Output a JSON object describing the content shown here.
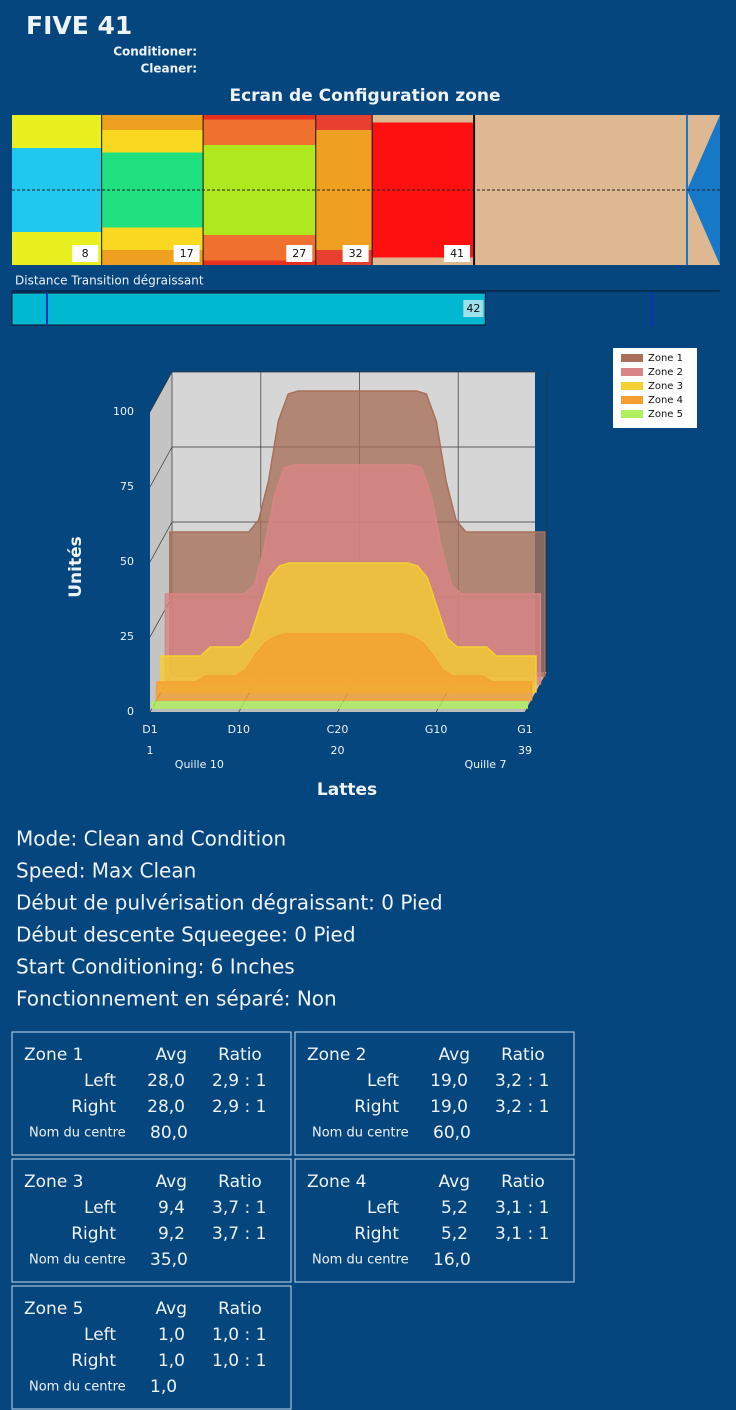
{
  "header": {
    "title": "FIVE 41",
    "conditioner_label": "Conditioner:",
    "cleaner_label": "Cleaner:",
    "screen_title": "Ecran de Configuration zone"
  },
  "zone_bar": {
    "ends": [
      8,
      17,
      27,
      32,
      41
    ]
  },
  "transition": {
    "label": "Distance Transition dégraissant",
    "value": 42
  },
  "chart_data": {
    "type": "area3d",
    "ylabel": "Unités",
    "xlabel": "Lattes",
    "ylim": [
      0,
      100
    ],
    "yticks": [
      0,
      25,
      50,
      75,
      100
    ],
    "xlim": [
      1,
      39
    ],
    "xticks": [
      {
        "value": 1,
        "label": "D1"
      },
      {
        "value": 10,
        "label": "D10"
      },
      {
        "value": 20,
        "label": "C20"
      },
      {
        "value": 30,
        "label": "G10"
      },
      {
        "value": 39,
        "label": "G1"
      }
    ],
    "xticks2": [
      1,
      20,
      39
    ],
    "annotations": [
      {
        "text": "Quille 10",
        "x": 6
      },
      {
        "text": "Quille 7",
        "x": 35
      }
    ],
    "legend": "top-right",
    "x": [
      1,
      2,
      3,
      4,
      5,
      6,
      7,
      8,
      9,
      10,
      11,
      12,
      13,
      14,
      15,
      16,
      17,
      18,
      19,
      20,
      21,
      22,
      23,
      24,
      25,
      26,
      27,
      28,
      29,
      30,
      31,
      32,
      33,
      34,
      35,
      36,
      37,
      38,
      39
    ],
    "series": [
      {
        "name": "Zone 1",
        "color": "#a8705a",
        "values": [
          48,
          48,
          48,
          48,
          48,
          48,
          48,
          48,
          48,
          52,
          65,
          85,
          94,
          95,
          95,
          95,
          95,
          95,
          95,
          95,
          95,
          95,
          95,
          95,
          95,
          95,
          94,
          85,
          65,
          52,
          48,
          48,
          48,
          48,
          48,
          48,
          48,
          48,
          48
        ]
      },
      {
        "name": "Zone 2",
        "color": "#d98585",
        "values": [
          30,
          30,
          30,
          30,
          30,
          30,
          30,
          30,
          30,
          33,
          45,
          62,
          72,
          73,
          73,
          73,
          73,
          73,
          73,
          73,
          73,
          73,
          73,
          73,
          73,
          73,
          72,
          62,
          45,
          33,
          30,
          30,
          30,
          30,
          30,
          30,
          30,
          30,
          30
        ]
      },
      {
        "name": "Zone 3",
        "color": "#f5d030",
        "values": [
          12,
          12,
          12,
          12,
          12,
          15,
          15,
          15,
          15,
          18,
          28,
          38,
          42,
          43,
          43,
          43,
          43,
          43,
          43,
          43,
          43,
          43,
          43,
          43,
          43,
          43,
          42,
          38,
          28,
          18,
          15,
          15,
          15,
          15,
          12,
          12,
          12,
          12,
          12
        ]
      },
      {
        "name": "Zone 4",
        "color": "#f5a030",
        "values": [
          6,
          6,
          6,
          6,
          6,
          8,
          8,
          8,
          8,
          10,
          15,
          19,
          21,
          22,
          22,
          22,
          22,
          22,
          22,
          22,
          22,
          22,
          22,
          22,
          22,
          22,
          21,
          19,
          15,
          10,
          8,
          8,
          8,
          8,
          6,
          6,
          6,
          6,
          6
        ]
      },
      {
        "name": "Zone 5",
        "color": "#b0f060",
        "values": [
          2,
          2,
          2,
          2,
          2,
          2,
          2,
          2,
          2,
          2,
          2,
          2,
          2,
          2,
          2,
          2,
          2,
          2,
          2,
          2,
          2,
          2,
          2,
          2,
          2,
          2,
          2,
          2,
          2,
          2,
          2,
          2,
          2,
          2,
          2,
          2,
          2,
          2,
          2
        ]
      }
    ]
  },
  "info": [
    "Mode: Clean and Condition",
    "Speed: Max Clean",
    "Début de pulvérisation dégraissant: 0 Pied",
    "Début descente Squeegee: 0 Pied",
    "Start Conditioning: 6 Inches",
    "Fonctionnement en séparé: Non"
  ],
  "zones": [
    {
      "name": "Zone 1",
      "avg_label": "Avg",
      "ratio_label": "Ratio",
      "rows": [
        {
          "side": "Left",
          "avg": "28,0",
          "ratio": "2,9 : 1"
        },
        {
          "side": "Right",
          "avg": "28,0",
          "ratio": "2,9 : 1"
        }
      ],
      "center_label": "Nom du centre",
      "center": "80,0"
    },
    {
      "name": "Zone 2",
      "avg_label": "Avg",
      "ratio_label": "Ratio",
      "rows": [
        {
          "side": "Left",
          "avg": "19,0",
          "ratio": "3,2 : 1"
        },
        {
          "side": "Right",
          "avg": "19,0",
          "ratio": "3,2 : 1"
        }
      ],
      "center_label": "Nom du centre",
      "center": "60,0"
    },
    {
      "name": "Zone 3",
      "avg_label": "Avg",
      "ratio_label": "Ratio",
      "rows": [
        {
          "side": "Left",
          "avg": "9,4",
          "ratio": "3,7 : 1"
        },
        {
          "side": "Right",
          "avg": "9,2",
          "ratio": "3,7 : 1"
        }
      ],
      "center_label": "Nom du centre",
      "center": "35,0"
    },
    {
      "name": "Zone 4",
      "avg_label": "Avg",
      "ratio_label": "Ratio",
      "rows": [
        {
          "side": "Left",
          "avg": "5,2",
          "ratio": "3,1 : 1"
        },
        {
          "side": "Right",
          "avg": "5,2",
          "ratio": "3,1 : 1"
        }
      ],
      "center_label": "Nom du centre",
      "center": "16,0"
    },
    {
      "name": "Zone 5",
      "avg_label": "Avg",
      "ratio_label": "Ratio",
      "rows": [
        {
          "side": "Left",
          "avg": "1,0",
          "ratio": "1,0 : 1"
        },
        {
          "side": "Right",
          "avg": "1,0",
          "ratio": "1,0 : 1"
        }
      ],
      "center_label": "Nom du centre",
      "center": "1,0"
    }
  ]
}
